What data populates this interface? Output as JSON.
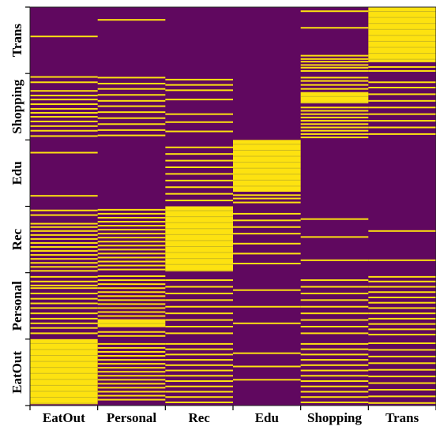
{
  "chart_data": {
    "type": "heatmap",
    "title": "",
    "xlabel": "",
    "ylabel": "",
    "x_categories": [
      "EatOut",
      "Personal",
      "Rec",
      "Edu",
      "Shopping",
      "Trans"
    ],
    "y_categories": [
      "EatOut",
      "Personal",
      "Rec",
      "Edu",
      "Shopping",
      "Trans"
    ],
    "y_order": "bottom-to-top",
    "rows_per_category": 100,
    "colors": {
      "off": "#60085f",
      "on": "#fde210",
      "rule": "#a79a2e"
    },
    "cells": [
      {
        "x": "Trans",
        "y": "Trans",
        "dense": [
          [
            0,
            83
          ]
        ],
        "sparse": [
          89,
          95
        ]
      },
      {
        "x": "Shopping",
        "y": "Trans",
        "sparse": [
          5,
          30,
          72,
          77,
          81,
          86,
          90,
          95
        ]
      },
      {
        "x": "Personal",
        "y": "Trans",
        "sparse": [
          18
        ]
      },
      {
        "x": "EatOut",
        "y": "Trans",
        "sparse": [
          43
        ]
      },
      {
        "x": "Shopping",
        "y": "Shopping",
        "dense": [
          [
            28,
            45
          ]
        ],
        "sparse": [
          5,
          10,
          16,
          22,
          50,
          55,
          60,
          65,
          70,
          75,
          80,
          85,
          90,
          95
        ]
      },
      {
        "x": "Trans",
        "y": "Shopping",
        "sparse": [
          12,
          20,
          30,
          40,
          50,
          60,
          70,
          80,
          90
        ]
      },
      {
        "x": "EatOut",
        "y": "Shopping",
        "sparse": [
          4,
          12,
          25,
          32,
          38,
          45,
          52,
          58,
          64,
          71,
          78,
          85,
          93
        ]
      },
      {
        "x": "Personal",
        "y": "Shopping",
        "sparse": [
          5,
          14,
          22,
          31,
          40,
          48,
          57,
          66,
          75,
          84,
          92
        ]
      },
      {
        "x": "Rec",
        "y": "Shopping",
        "sparse": [
          8,
          16,
          24,
          38,
          60,
          72,
          86
        ]
      },
      {
        "x": "Edu",
        "y": "Edu",
        "dense": [
          [
            0,
            78
          ]
        ],
        "sparse": [
          82,
          87,
          93
        ]
      },
      {
        "x": "Rec",
        "y": "Edu",
        "sparse": [
          10,
          20,
          30,
          40,
          50,
          60,
          70,
          80,
          90
        ]
      },
      {
        "x": "EatOut",
        "y": "Edu",
        "sparse": [
          18,
          83
        ]
      },
      {
        "x": "Rec",
        "y": "Rec",
        "dense": [
          [
            0,
            98
          ]
        ]
      },
      {
        "x": "EatOut",
        "y": "Rec",
        "sparse": [
          5,
          12,
          25,
          30,
          36,
          42,
          48,
          54,
          60,
          66,
          72,
          78,
          84,
          90,
          96
        ]
      },
      {
        "x": "Personal",
        "y": "Rec",
        "sparse": [
          4,
          10,
          16,
          22,
          28,
          34,
          40,
          46,
          52,
          58,
          64,
          70,
          76,
          82,
          88,
          94
        ]
      },
      {
        "x": "Edu",
        "y": "Rec",
        "sparse": [
          10,
          20,
          30,
          40,
          55,
          70,
          85
        ]
      },
      {
        "x": "Shopping",
        "y": "Rec",
        "sparse": [
          18,
          45,
          80
        ]
      },
      {
        "x": "Trans",
        "y": "Rec",
        "sparse": [
          36,
          80
        ]
      },
      {
        "x": "Personal",
        "y": "Personal",
        "dense": [
          [
            70,
            82
          ]
        ],
        "sparse": [
          4,
          10,
          16,
          22,
          28,
          34,
          40,
          46,
          52,
          58,
          64,
          88,
          94
        ]
      },
      {
        "x": "EatOut",
        "y": "Personal",
        "sparse": [
          5,
          12,
          18,
          22,
          30,
          38,
          45,
          52,
          60,
          68,
          75,
          82,
          90
        ]
      },
      {
        "x": "Rec",
        "y": "Personal",
        "sparse": [
          10,
          20,
          30,
          40,
          50,
          60,
          70,
          80,
          90
        ]
      },
      {
        "x": "Edu",
        "y": "Personal",
        "sparse": [
          25,
          50,
          75
        ]
      },
      {
        "x": "Shopping",
        "y": "Personal",
        "sparse": [
          10,
          20,
          30,
          40,
          50,
          60,
          70,
          80,
          90
        ]
      },
      {
        "x": "Trans",
        "y": "Personal",
        "sparse": [
          5,
          12,
          20,
          28,
          36,
          44,
          52,
          60,
          68,
          76,
          84,
          92
        ]
      },
      {
        "x": "EatOut",
        "y": "EatOut",
        "dense": [
          [
            0,
            98
          ]
        ]
      },
      {
        "x": "Personal",
        "y": "EatOut",
        "sparse": [
          6,
          12,
          18,
          24,
          30,
          36,
          42,
          48,
          54,
          60,
          66,
          72,
          78,
          84,
          90
        ]
      },
      {
        "x": "Rec",
        "y": "EatOut",
        "sparse": [
          6,
          14,
          22,
          30,
          38,
          46,
          54,
          62,
          70,
          78,
          86,
          94
        ]
      },
      {
        "x": "Edu",
        "y": "EatOut",
        "sparse": [
          20,
          40,
          60
        ]
      },
      {
        "x": "Shopping",
        "y": "EatOut",
        "sparse": [
          6,
          14,
          22,
          30,
          38,
          46,
          54,
          62,
          70,
          78,
          86,
          94
        ]
      },
      {
        "x": "Trans",
        "y": "EatOut",
        "sparse": [
          5,
          15,
          25,
          35,
          45,
          55,
          65,
          75,
          85,
          95
        ]
      }
    ]
  }
}
